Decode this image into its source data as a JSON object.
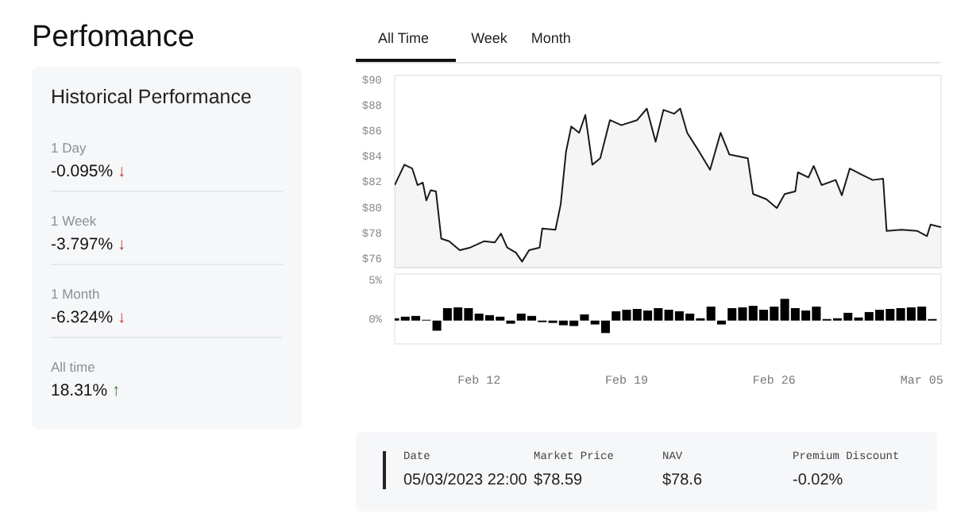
{
  "chart_data": [
    {
      "type": "other",
      "title": "Perfomance",
      "subtitle": "Historical Performance",
      "annotations": [
        "1 Day",
        "-0.095% ↓",
        "1 Week",
        "-3.797% ↓",
        "1 Month",
        "-6.324% ↓",
        "All time",
        "18.31% ↑"
      ],
      "colors": [
        "#8a8f98",
        "#c0392b",
        "#8a8f98",
        "#c0392b",
        "#8a8f98",
        "#c0392b",
        "#8a8f98",
        "#2e7d32"
      ]
    },
    {
      "type": "area",
      "annotations": [
        "All Time",
        "Week",
        "Month"
      ],
      "tick_labels": "y",
      "grid": false,
      "xlim": [
        "2023-02-08",
        "2023-03-05T22:00"
      ],
      "ylim": [
        75.3,
        90.5
      ],
      "yticks": [
        {
          "value": 76,
          "label": "$76"
        },
        {
          "value": 78,
          "label": "$78"
        },
        {
          "value": 80,
          "label": "$80"
        },
        {
          "value": 82,
          "label": "$82"
        },
        {
          "value": 84,
          "label": "$84"
        },
        {
          "value": 86,
          "label": "$86"
        },
        {
          "value": 88,
          "label": "$88"
        },
        {
          "value": 90,
          "label": "$90"
        }
      ],
      "x": [
        "2023-02-08T00:00",
        "2023-02-08T11:00",
        "2023-02-08T20:00",
        "2023-02-09T02:00",
        "2023-02-09T08:00",
        "2023-02-09T12:00",
        "2023-02-09T17:00",
        "2023-02-09T23:00",
        "2023-02-10T05:00",
        "2023-02-10T14:00",
        "2023-02-11T02:00",
        "2023-02-11T14:00",
        "2023-02-12T06:00",
        "2023-02-12T18:00",
        "2023-02-13T01:00",
        "2023-02-13T08:00",
        "2023-02-13T18:00",
        "2023-02-14T01:00",
        "2023-02-14T09:00",
        "2023-02-14T21:00",
        "2023-02-15T00:00",
        "2023-02-15T15:00",
        "2023-02-15T21:00",
        "2023-02-16T03:00",
        "2023-02-16T09:00",
        "2023-02-16T18:00",
        "2023-02-17T01:00",
        "2023-02-17T09:00",
        "2023-02-17T18:00",
        "2023-02-18T05:00",
        "2023-02-18T18:00",
        "2023-02-19T12:00",
        "2023-02-19T23:00",
        "2023-02-20T09:00",
        "2023-02-20T18:00",
        "2023-02-21T06:00",
        "2023-02-21T13:00",
        "2023-02-21T21:00",
        "2023-02-22T09:00",
        "2023-02-22T23:00",
        "2023-02-23T11:00",
        "2023-02-23T21:00",
        "2023-02-24T18:00",
        "2023-02-25T00:00",
        "2023-02-25T15:00",
        "2023-02-26T03:00",
        "2023-02-26T12:00",
        "2023-02-27T00:00",
        "2023-02-27T03:00",
        "2023-02-27T15:00",
        "2023-02-27T21:00",
        "2023-02-28T06:00",
        "2023-02-28T22:00",
        "2023-03-01T05:00",
        "2023-03-01T14:00",
        "2023-03-02T04:00",
        "2023-03-02T16:00",
        "2023-03-03T04:00",
        "2023-03-03T08:00",
        "2023-03-04T01:00",
        "2023-03-04T19:00",
        "2023-03-05T06:00",
        "2023-03-05T10:00",
        "2023-03-05T22:00"
      ],
      "series": [
        {
          "color": "#1a1a1a",
          "values": [
            81.9,
            83.5,
            83.2,
            81.9,
            82.1,
            80.7,
            81.5,
            81.4,
            77.7,
            77.5,
            76.8,
            77.0,
            77.5,
            77.4,
            78.1,
            77.0,
            76.6,
            75.9,
            76.8,
            77.0,
            78.5,
            78.4,
            80.4,
            84.5,
            86.5,
            86.0,
            87.4,
            83.5,
            84.0,
            87.0,
            86.6,
            87.0,
            87.9,
            85.3,
            87.8,
            87.5,
            87.9,
            86.0,
            84.7,
            83.1,
            86.0,
            84.3,
            84.0,
            81.2,
            80.8,
            80.1,
            81.2,
            81.4,
            82.9,
            82.5,
            83.4,
            81.9,
            82.3,
            81.1,
            83.2,
            82.7,
            82.3,
            82.4,
            78.3,
            78.4,
            78.3,
            77.9,
            78.8,
            78.6
          ]
        }
      ]
    },
    {
      "type": "bar",
      "grid": false,
      "xlim": [
        "2023-02-08",
        "2023-03-05T22:00"
      ],
      "ylim": [
        -3,
        6
      ],
      "yticks": [
        {
          "value": 0,
          "label": "0%"
        },
        {
          "value": 5,
          "label": "5%"
        }
      ],
      "xticks": [
        {
          "value": "2023-02-12",
          "label": "Feb 12"
        },
        {
          "value": "2023-02-19",
          "label": "Feb 19"
        },
        {
          "value": "2023-02-26",
          "label": "Feb 26"
        },
        {
          "value": "2023-03-05",
          "label": "Mar 05"
        }
      ],
      "x": [
        "2023-02-08T00:00",
        "2023-02-08T12:00",
        "2023-02-09T00:00",
        "2023-02-09T12:00",
        "2023-02-10T00:00",
        "2023-02-10T12:00",
        "2023-02-11T00:00",
        "2023-02-11T12:00",
        "2023-02-12T00:00",
        "2023-02-12T12:00",
        "2023-02-13T00:00",
        "2023-02-13T12:00",
        "2023-02-14T00:00",
        "2023-02-14T12:00",
        "2023-02-15T00:00",
        "2023-02-15T12:00",
        "2023-02-16T00:00",
        "2023-02-16T12:00",
        "2023-02-17T00:00",
        "2023-02-17T12:00",
        "2023-02-18T00:00",
        "2023-02-18T12:00",
        "2023-02-19T00:00",
        "2023-02-19T12:00",
        "2023-02-20T00:00",
        "2023-02-20T12:00",
        "2023-02-21T00:00",
        "2023-02-21T12:00",
        "2023-02-22T00:00",
        "2023-02-22T12:00",
        "2023-02-23T00:00",
        "2023-02-23T12:00",
        "2023-02-24T00:00",
        "2023-02-24T12:00",
        "2023-02-25T00:00",
        "2023-02-25T12:00",
        "2023-02-26T00:00",
        "2023-02-26T12:00",
        "2023-02-27T00:00",
        "2023-02-27T12:00",
        "2023-02-28T00:00",
        "2023-02-28T12:00",
        "2023-03-01T00:00",
        "2023-03-01T12:00",
        "2023-03-02T00:00",
        "2023-03-02T12:00",
        "2023-03-03T00:00",
        "2023-03-03T12:00",
        "2023-03-04T00:00",
        "2023-03-04T12:00",
        "2023-03-05T00:00",
        "2023-03-05T12:00"
      ],
      "series": [
        {
          "color": "#000000",
          "values": [
            0.3,
            0.5,
            0.6,
            0.1,
            -1.3,
            1.6,
            1.7,
            1.6,
            0.9,
            0.7,
            0.5,
            -0.4,
            0.9,
            0.6,
            -0.2,
            -0.3,
            -0.6,
            -0.7,
            0.8,
            -0.5,
            -1.6,
            1.2,
            1.4,
            1.5,
            1.3,
            1.6,
            1.4,
            1.2,
            0.9,
            0.3,
            1.8,
            -0.5,
            1.6,
            1.7,
            1.9,
            1.4,
            1.8,
            2.8,
            1.6,
            1.3,
            1.8,
            0.2,
            0.3,
            1.0,
            0.4,
            1.1,
            1.4,
            1.5,
            1.6,
            1.7,
            1.8,
            0.2
          ]
        }
      ]
    },
    {
      "type": "other",
      "annotations": [
        "Date",
        "05/03/2023 22:00",
        "Market Price",
        "$78.59",
        "NAV",
        "$78.6",
        "Premium Discount",
        "-0.02%"
      ]
    }
  ]
}
